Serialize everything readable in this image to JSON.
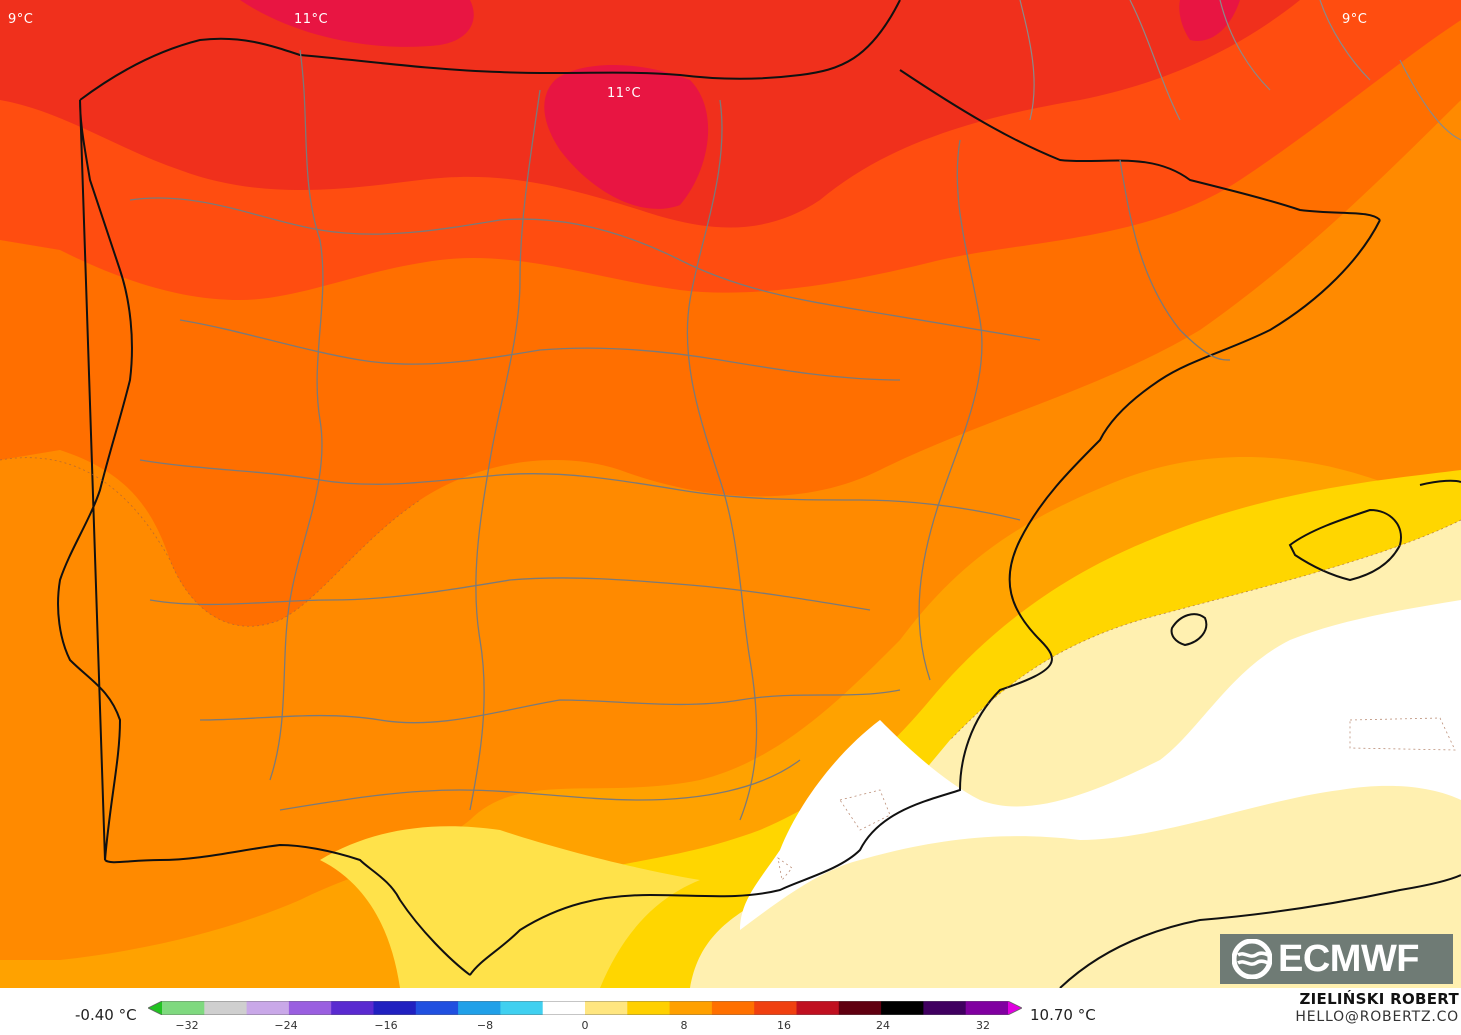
{
  "map": {
    "contour_labels": [
      "9°C",
      "11°C",
      "11°C",
      "9°C"
    ]
  },
  "legend": {
    "min_value": "-0.40 °C",
    "max_value": "10.70 °C",
    "ticks": [
      "−32",
      "−24",
      "−16",
      "−8",
      "0",
      "8",
      "16",
      "24",
      "32"
    ],
    "palette": [
      "#22c222",
      "#7fd97f",
      "#cfcfcf",
      "#c9a8e8",
      "#9a5fe0",
      "#5a2ad0",
      "#2020c0",
      "#2050e0",
      "#20a0e8",
      "#40d0f0",
      "#ffffff",
      "#ffe680",
      "#ffd000",
      "#ffa000",
      "#ff7000",
      "#f04010",
      "#c01020",
      "#600010",
      "#000000",
      "#400060",
      "#8000a0",
      "#e000e0"
    ]
  },
  "branding": {
    "logo_text": "ECMWF",
    "author": "ZIELIŃSKI ROBERT",
    "contact": "HELLO@ROBERTZ.CO"
  }
}
